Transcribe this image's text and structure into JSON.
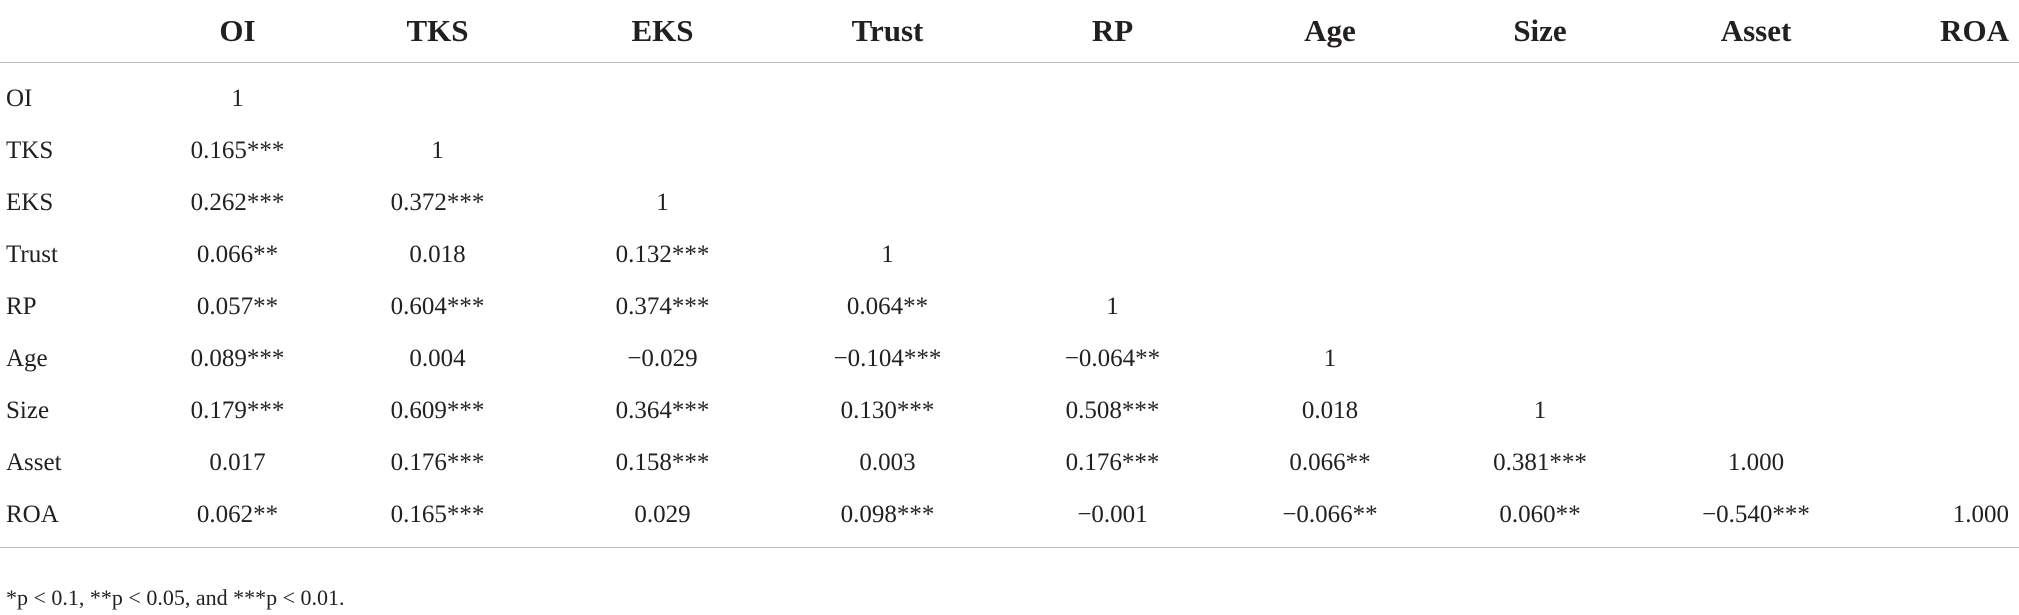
{
  "table": {
    "headers": [
      "",
      "OI",
      "TKS",
      "EKS",
      "Trust",
      "RP",
      "Age",
      "Size",
      "Asset",
      "ROA"
    ],
    "rows": [
      [
        "OI",
        "1",
        "",
        "",
        "",
        "",
        "",
        "",
        "",
        ""
      ],
      [
        "TKS",
        "0.165***",
        "1",
        "",
        "",
        "",
        "",
        "",
        "",
        ""
      ],
      [
        "EKS",
        "0.262***",
        "0.372***",
        "1",
        "",
        "",
        "",
        "",
        "",
        ""
      ],
      [
        "Trust",
        "0.066**",
        "0.018",
        "0.132***",
        "1",
        "",
        "",
        "",
        "",
        ""
      ],
      [
        "RP",
        "0.057**",
        "0.604***",
        "0.374***",
        "0.064**",
        "1",
        "",
        "",
        "",
        ""
      ],
      [
        "Age",
        "0.089***",
        "0.004",
        "−0.029",
        "−0.104***",
        "−0.064**",
        "1",
        "",
        "",
        ""
      ],
      [
        "Size",
        "0.179***",
        "0.609***",
        "0.364***",
        "0.130***",
        "0.508***",
        "0.018",
        "1",
        "",
        ""
      ],
      [
        "Asset",
        "0.017",
        "0.176***",
        "0.158***",
        "0.003",
        "0.176***",
        "0.066**",
        "0.381***",
        "1.000",
        ""
      ],
      [
        "ROA",
        "0.062**",
        "0.165***",
        "0.029",
        "0.098***",
        "−0.001",
        "−0.066**",
        "0.060**",
        "−0.540***",
        "1.000"
      ]
    ]
  },
  "footnote": "*p < 0.1, **p < 0.05, and ***p < 0.01."
}
